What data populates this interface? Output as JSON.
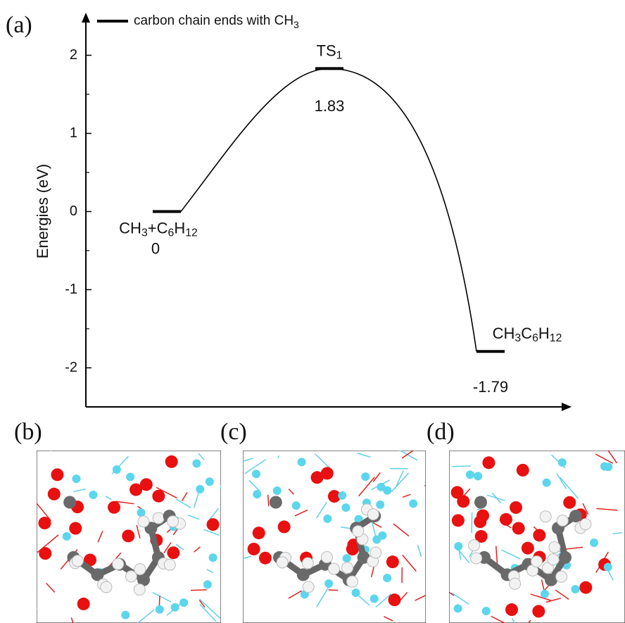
{
  "chart_data": {
    "type": "energy_profile",
    "panel_label": "(a)",
    "y_label": "Energies (eV)",
    "categories": [
      "CH3+C6H12",
      "TS1",
      "CH3C6H12"
    ],
    "series": [
      {
        "name": "carbon chain ends with CH3",
        "color": "#000000",
        "values": [
          0,
          1.83,
          -1.79
        ],
        "value_labels": [
          "0",
          "1.83",
          "-1.79"
        ]
      }
    ],
    "ylim": [
      -2.5,
      2.5
    ],
    "yticks": [
      -2,
      -1,
      0,
      1,
      2
    ]
  },
  "panels": [
    {
      "label": "(b)"
    },
    {
      "label": "(c)"
    },
    {
      "label": "(d)"
    }
  ]
}
